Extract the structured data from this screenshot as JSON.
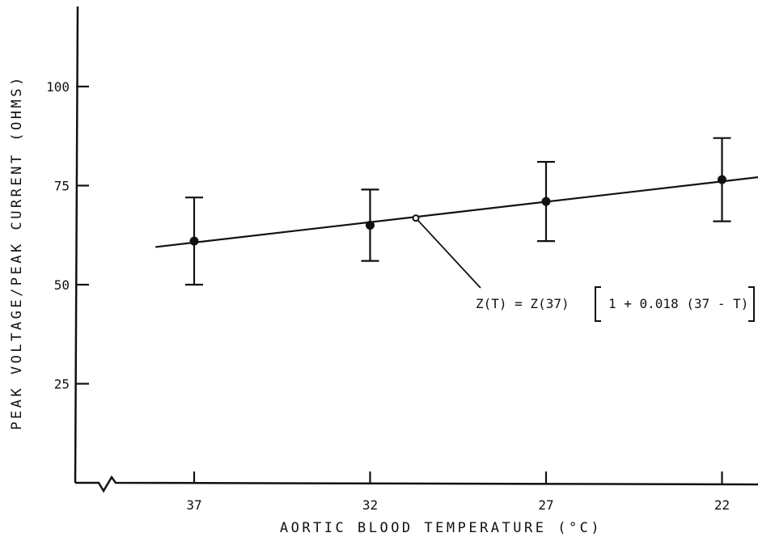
{
  "chart_data": {
    "type": "scatter",
    "xlabel": "AORTIC BLOOD TEMPERATURE (°C)",
    "ylabel": "PEAK VOLTAGE/PEAK CURRENT (OHMS)",
    "x_axis_reversed": true,
    "x_axis_break": true,
    "xlim": [
      40.1,
      20.6
    ],
    "ylim": [
      0,
      125
    ],
    "x_ticks": [
      37,
      32,
      27,
      22
    ],
    "x_tick_labels": [
      "37",
      "32",
      "27",
      "22"
    ],
    "y_ticks": [
      25,
      50,
      75,
      100
    ],
    "y_tick_labels": [
      "25",
      "50",
      "75",
      "100"
    ],
    "grid": false,
    "points": [
      {
        "x": 37,
        "y": 61,
        "err_low": 50,
        "err_high": 72
      },
      {
        "x": 32,
        "y": 65,
        "err_low": 56,
        "err_high": 74
      },
      {
        "x": 27,
        "y": 71,
        "err_low": 61,
        "err_high": 81
      },
      {
        "x": 22,
        "y": 76.5,
        "err_low": 66,
        "err_high": 87
      }
    ],
    "fit_line": {
      "x_start": 38.1,
      "y_start": 59.5,
      "x_end": 20.6,
      "y_end": 77.5
    },
    "annotation": {
      "text_left": "Z(T) = Z(37)",
      "text_inner": "1 + 0.018 (37 - T)",
      "anchor_x": 30.7,
      "anchor_y": 66.8
    }
  }
}
